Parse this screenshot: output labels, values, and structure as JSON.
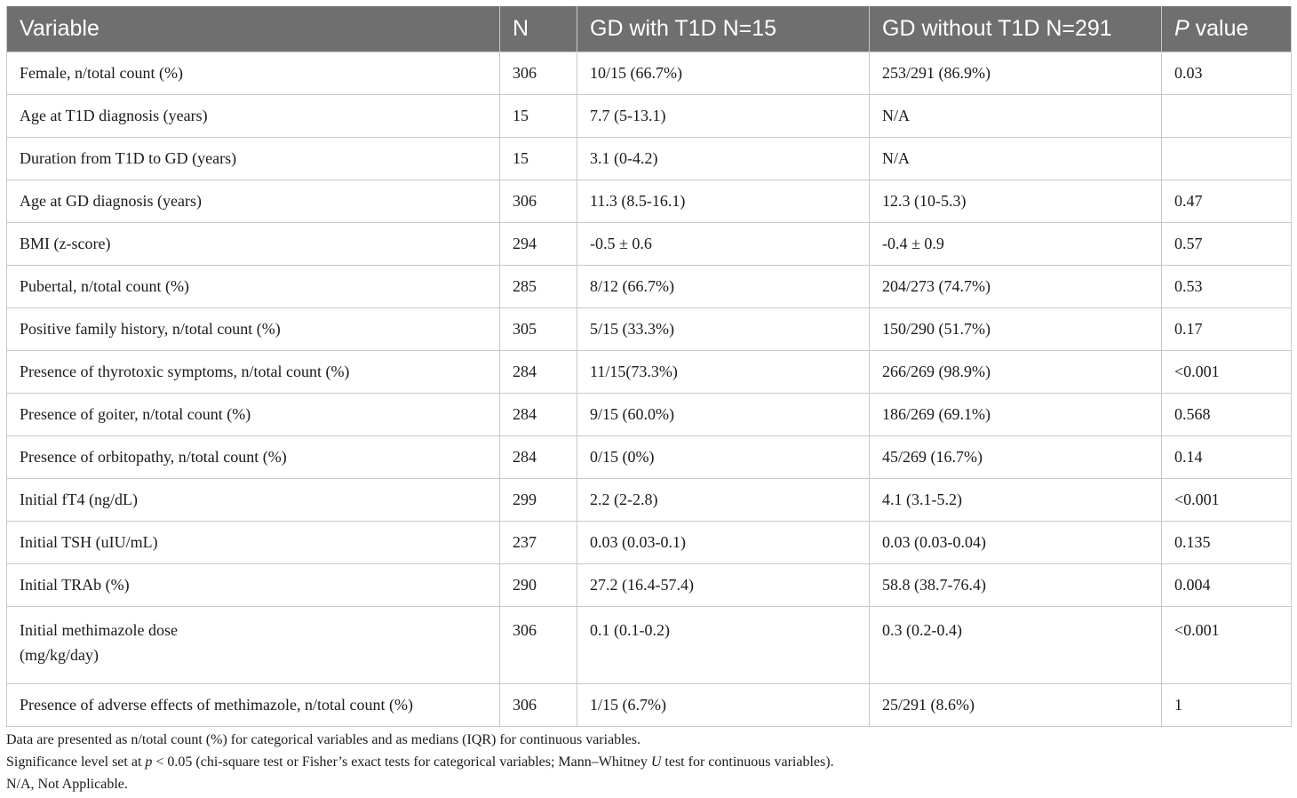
{
  "table": {
    "headers": {
      "variable": "Variable",
      "n": "N",
      "group1": "GD with T1D N=15",
      "group2": "GD without T1D N=291",
      "p_italic": "P",
      "p_rest": " value"
    },
    "rows": [
      {
        "variable": "Female, n/total count (%)",
        "n": "306",
        "g1": "10/15 (66.7%)",
        "g2": "253/291 (86.9%)",
        "p": "0.03"
      },
      {
        "variable": "Age at T1D diagnosis (years)",
        "n": "15",
        "g1": "7.7 (5-13.1)",
        "g2": "N/A",
        "p": ""
      },
      {
        "variable": "Duration from T1D to GD (years)",
        "n": "15",
        "g1": "3.1 (0-4.2)",
        "g2": "N/A",
        "p": ""
      },
      {
        "variable": "Age at GD diagnosis (years)",
        "n": "306",
        "g1": "11.3 (8.5-16.1)",
        "g2": "12.3 (10-5.3)",
        "p": "0.47"
      },
      {
        "variable": "BMI (z-score)",
        "n": "294",
        "g1": "-0.5 ± 0.6",
        "g2": "-0.4 ± 0.9",
        "p": "0.57"
      },
      {
        "variable": "Pubertal, n/total count (%)",
        "n": "285",
        "g1": "8/12 (66.7%)",
        "g2": "204/273 (74.7%)",
        "p": "0.53"
      },
      {
        "variable": "Positive family history, n/total count (%)",
        "n": "305",
        "g1": "5/15 (33.3%)",
        "g2": "150/290 (51.7%)",
        "p": "0.17"
      },
      {
        "variable": "Presence of thyrotoxic symptoms, n/total count (%)",
        "n": "284",
        "g1": "11/15(73.3%)",
        "g2": "266/269 (98.9%)",
        "p": "<0.001"
      },
      {
        "variable": "Presence of goiter, n/total count (%)",
        "n": "284",
        "g1": "9/15 (60.0%)",
        "g2": "186/269 (69.1%)",
        "p": "0.568"
      },
      {
        "variable": "Presence of orbitopathy, n/total count (%)",
        "n": "284",
        "g1": "0/15 (0%)",
        "g2": "45/269 (16.7%)",
        "p": "0.14"
      },
      {
        "variable": "Initial fT4 (ng/dL)",
        "n": "299",
        "g1": "2.2 (2-2.8)",
        "g2": "4.1 (3.1-5.2)",
        "p": "<0.001"
      },
      {
        "variable": "Initial TSH (uIU/mL)",
        "n": "237",
        "g1": "0.03 (0.03-0.1)",
        "g2": "0.03 (0.03-0.04)",
        "p": "0.135"
      },
      {
        "variable": "Initial TRAb (%)",
        "n": "290",
        "g1": "27.2 (16.4-57.4)",
        "g2": "58.8 (38.7-76.4)",
        "p": "0.004"
      },
      {
        "variable_line1": "Initial methimazole dose",
        "variable_line2": "(mg/kg/day)",
        "n": "306",
        "g1": "0.1 (0.1-0.2)",
        "g2": "0.3 (0.2-0.4)",
        "p": "<0.001"
      },
      {
        "variable": "Presence of adverse effects of methimazole, n/total count (%)",
        "n": "306",
        "g1": "1/15 (6.7%)",
        "g2": "25/291 (8.6%)",
        "p": "1"
      }
    ]
  },
  "notes": {
    "line1": "Data are presented as n/total count (%) for categorical variables and as medians (IQR) for continuous variables.",
    "line2_a": "Significance level set at ",
    "line2_p": "p",
    "line2_b": " < 0.05 (chi-square test or Fisher’s exact tests for categorical variables; Mann–Whitney ",
    "line2_u": "U",
    "line2_c": " test for continuous variables).",
    "line3": "N/A, Not Applicable."
  }
}
